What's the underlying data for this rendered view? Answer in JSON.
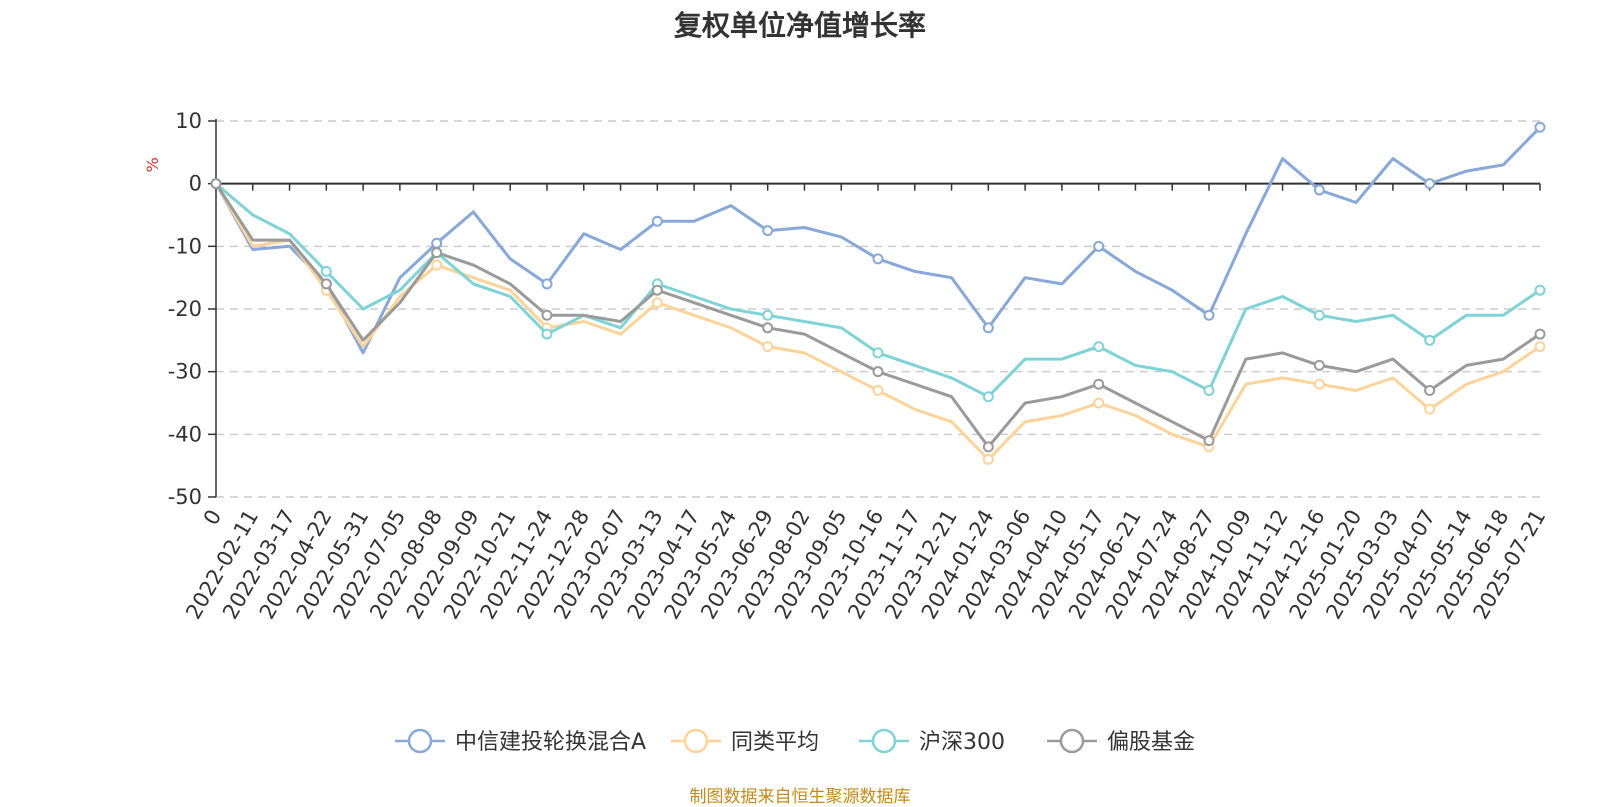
{
  "chart_data": {
    "type": "line",
    "title": "复权单位净值增长率",
    "ylabel": "%",
    "ylim": [
      -50,
      10
    ],
    "yticks": [
      10,
      0,
      -10,
      -20,
      -30,
      -40,
      -50
    ],
    "x_tick_labels": [
      "0",
      "2022-02-11",
      "2022-03-17",
      "2022-04-22",
      "2022-05-31",
      "2022-07-05",
      "2022-08-08",
      "2022-09-09",
      "2022-10-21",
      "2022-11-24",
      "2022-12-28",
      "2023-02-07",
      "2023-03-13",
      "2023-04-17",
      "2023-05-24",
      "2023-06-29",
      "2023-08-02",
      "2023-09-05",
      "2023-10-16",
      "2023-11-17",
      "2023-12-21",
      "2024-01-24",
      "2024-03-06",
      "2024-04-10",
      "2024-05-17",
      "2024-06-21",
      "2024-07-24",
      "2024-08-27",
      "2024-10-09",
      "2024-11-12",
      "2024-12-16",
      "2025-01-20",
      "2025-03-03",
      "2025-04-07",
      "2025-05-14",
      "2025-06-18",
      "2025-07-21"
    ],
    "grid": true,
    "legend_position": "bottom",
    "series": [
      {
        "name": "中信建投轮换混合A",
        "color": "#87a8d8",
        "values": [
          0,
          -10.5,
          -10,
          -16,
          -27,
          -15,
          -9.5,
          -4.5,
          -12,
          -16,
          -8,
          -10.5,
          -6,
          -6,
          -3.5,
          -7.5,
          -7,
          -8.5,
          -12,
          -14,
          -15,
          -23,
          -15,
          -16,
          -10,
          -14,
          -17,
          -21,
          -8,
          4,
          -1,
          -3,
          4,
          0,
          2,
          3,
          9
        ]
      },
      {
        "name": "同类平均",
        "color": "#fdd39a",
        "values": [
          0,
          -10,
          -9,
          -17,
          -26,
          -18,
          -13,
          -15,
          -17,
          -23,
          -22,
          -24,
          -19,
          -21,
          -23,
          -26,
          -27,
          -30,
          -33,
          -36,
          -38,
          -44,
          -38,
          -37,
          -35,
          -37,
          -40,
          -42,
          -32,
          -31,
          -32,
          -33,
          -31,
          -36,
          -32,
          -30,
          -26
        ]
      },
      {
        "name": "沪深300",
        "color": "#7dd3d6",
        "values": [
          0,
          -5,
          -8,
          -14,
          -20,
          -17,
          -11,
          -16,
          -18,
          -24,
          -21,
          -23,
          -16,
          -18,
          -20,
          -21,
          -22,
          -23,
          -27,
          -29,
          -31,
          -34,
          -28,
          -28,
          -26,
          -29,
          -30,
          -33,
          -20,
          -18,
          -21,
          -22,
          -21,
          -25,
          -21,
          -21,
          -17
        ]
      },
      {
        "name": "偏股基金",
        "color": "#9a9a9a",
        "values": [
          0,
          -9,
          -9,
          -16,
          -25,
          -19,
          -11,
          -13,
          -16,
          -21,
          -21,
          -22,
          -17,
          -19,
          -21,
          -23,
          -24,
          -27,
          -30,
          -32,
          -34,
          -42,
          -35,
          -34,
          -32,
          -35,
          -38,
          -41,
          -28,
          -27,
          -29,
          -30,
          -28,
          -33,
          -29,
          -28,
          -24
        ]
      }
    ]
  },
  "footer_note": "制图数据来自恒生聚源数据库"
}
